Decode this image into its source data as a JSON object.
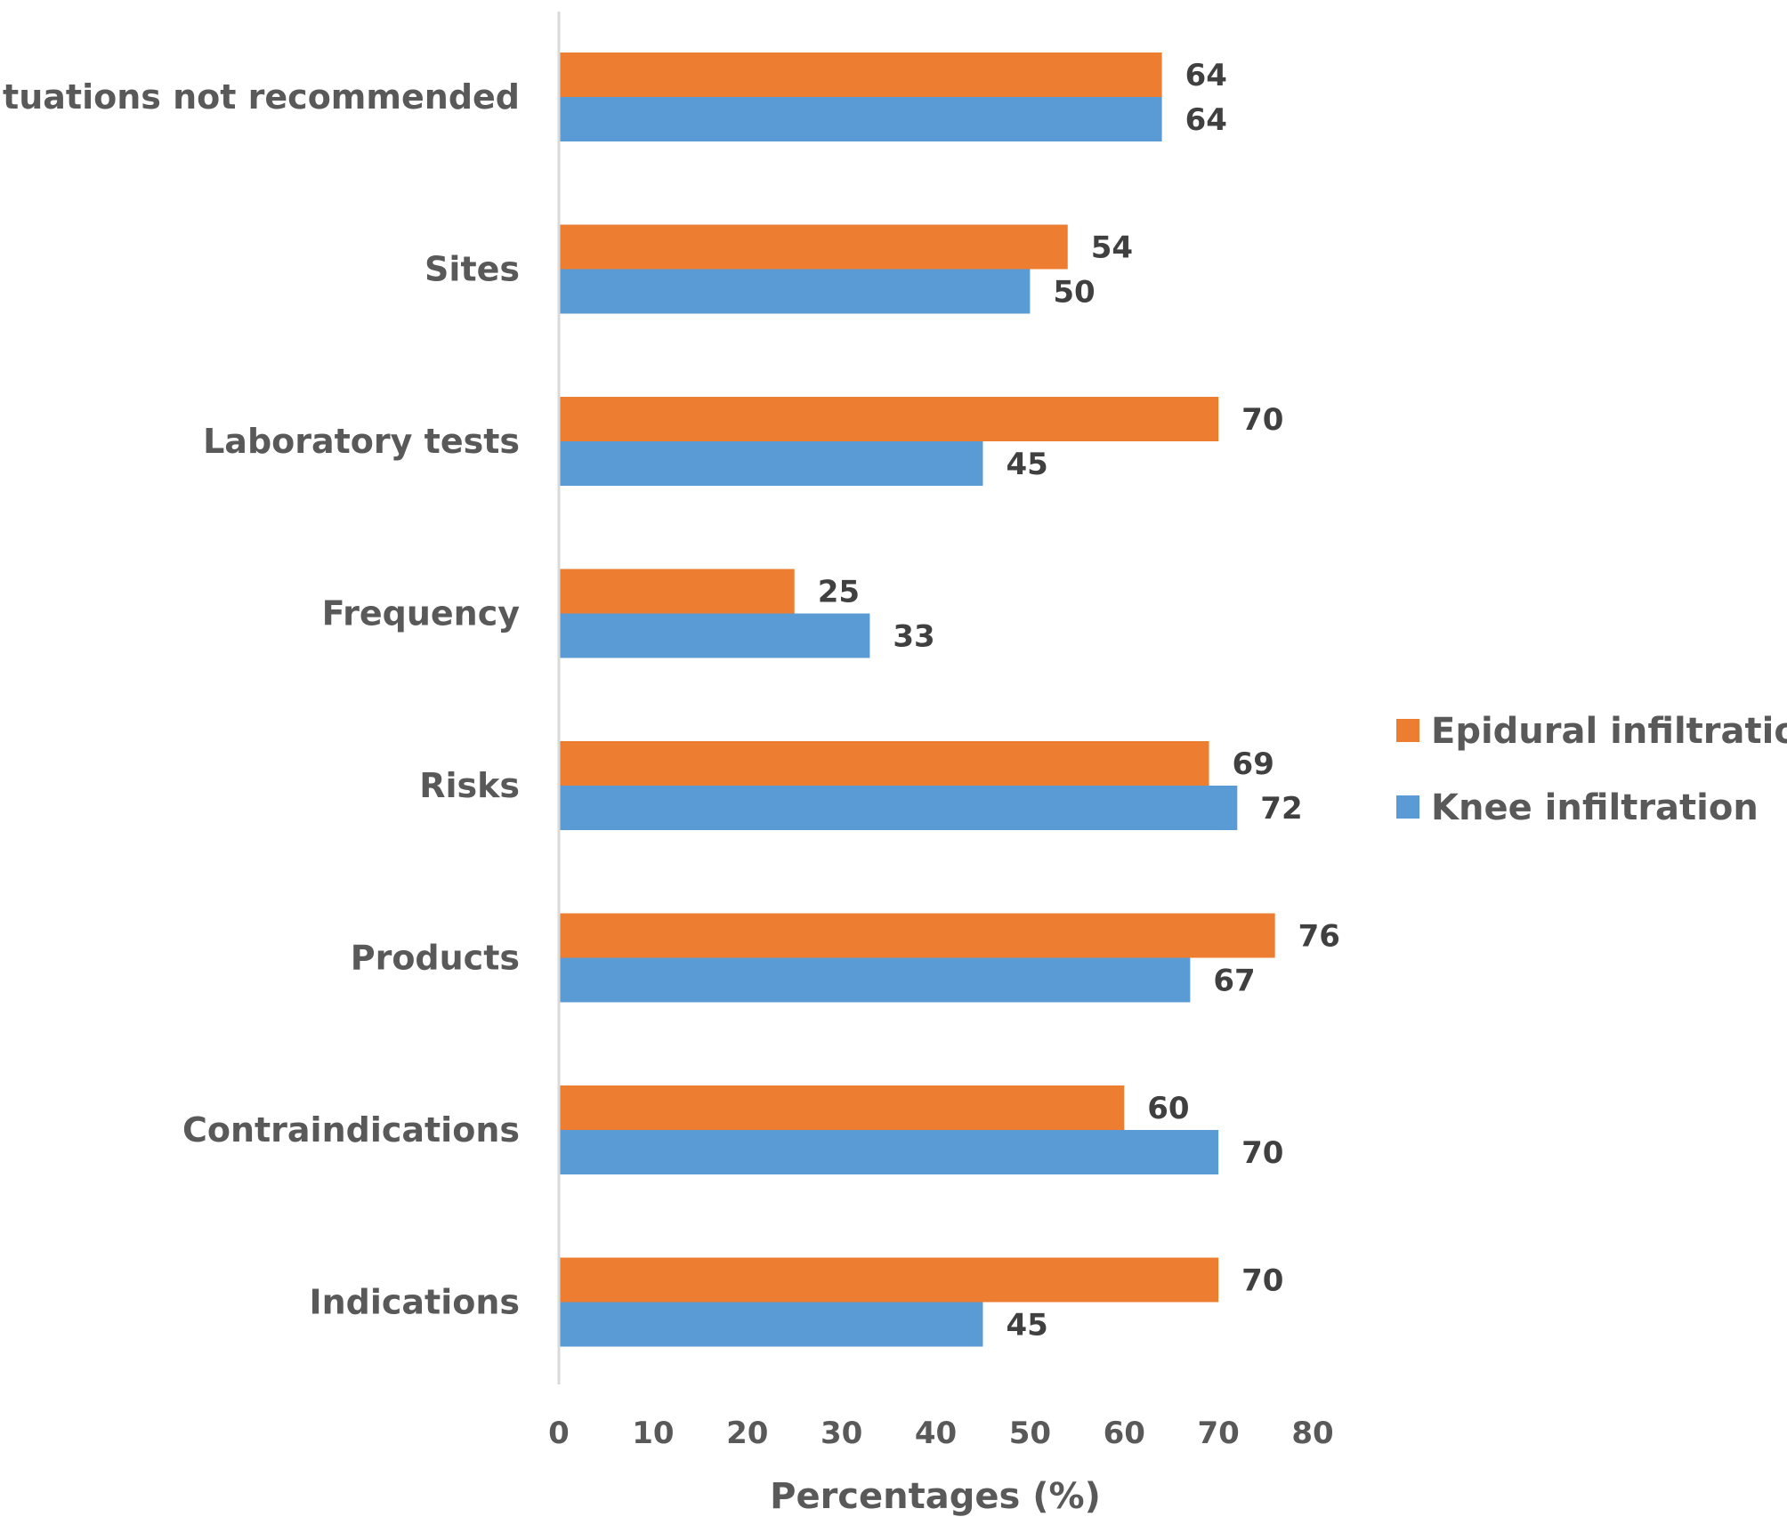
{
  "chart_data": {
    "type": "bar",
    "orientation": "horizontal",
    "categories": [
      "Situations not recommended",
      "Sites",
      "Laboratory tests",
      "Frequency",
      "Risks",
      "Products",
      "Contraindications",
      "Indications"
    ],
    "series": [
      {
        "name": "Epidural infiltration",
        "color": "#ED7D31",
        "values": [
          64,
          54,
          70,
          25,
          69,
          76,
          60,
          70
        ]
      },
      {
        "name": "Knee infiltration",
        "color": "#5B9BD5",
        "values": [
          64,
          50,
          45,
          33,
          72,
          67,
          70,
          45
        ]
      }
    ],
    "xlabel": "Percentages (%)",
    "ylabel": "",
    "xlim": [
      0,
      80
    ],
    "xticks": [
      "0",
      "10",
      "20",
      "30",
      "40",
      "50",
      "60",
      "70",
      "80"
    ],
    "grid": false,
    "data_labels": true,
    "legend_position": "right"
  }
}
